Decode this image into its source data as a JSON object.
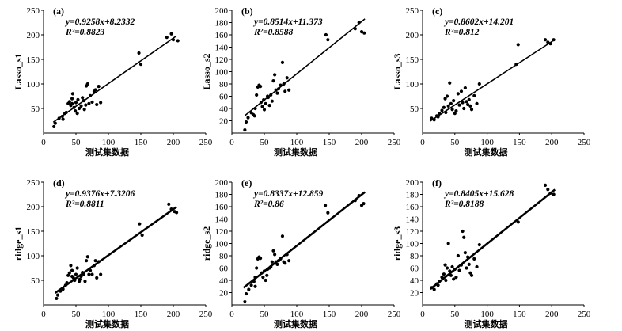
{
  "chart_data": [
    {
      "type": "scatter",
      "panel_label": "(a)",
      "ylabel": "Lasso_s1",
      "xlabel": "测试集数据",
      "xlim": [
        0,
        250
      ],
      "ylim": [
        0,
        250
      ],
      "xticks": [
        0,
        50,
        100,
        150,
        200,
        250
      ],
      "yticks": [
        50,
        100,
        150,
        200,
        250
      ],
      "equation": "y=0.9258x+8.2332",
      "r2_label": "R²=0.8823",
      "fit": {
        "slope": 0.9258,
        "intercept": 8.2332,
        "x_range": [
          15,
          205
        ]
      },
      "points": [
        [
          16,
          13
        ],
        [
          18,
          20
        ],
        [
          24,
          30
        ],
        [
          29,
          34
        ],
        [
          33,
          40
        ],
        [
          35,
          42
        ],
        [
          38,
          60
        ],
        [
          40,
          64
        ],
        [
          42,
          56
        ],
        [
          44,
          70
        ],
        [
          45,
          80
        ],
        [
          47,
          52
        ],
        [
          49,
          45
        ],
        [
          50,
          62
        ],
        [
          53,
          68
        ],
        [
          55,
          50
        ],
        [
          58,
          55
        ],
        [
          60,
          72
        ],
        [
          62,
          66
        ],
        [
          63,
          48
        ],
        [
          65,
          57
        ],
        [
          66,
          96
        ],
        [
          68,
          100
        ],
        [
          70,
          60
        ],
        [
          72,
          76
        ],
        [
          75,
          63
        ],
        [
          78,
          85
        ],
        [
          80,
          88
        ],
        [
          82,
          58
        ],
        [
          85,
          95
        ],
        [
          88,
          62
        ],
        [
          147,
          163
        ],
        [
          150,
          140
        ],
        [
          190,
          195
        ],
        [
          197,
          202
        ],
        [
          200,
          190
        ],
        [
          207,
          188
        ],
        [
          44,
          60
        ],
        [
          52,
          40
        ],
        [
          30,
          28
        ]
      ]
    },
    {
      "type": "scatter",
      "panel_label": "(b)",
      "ylabel": "Lasso_s2",
      "xlabel": "测试集数据",
      "xlim": [
        0,
        250
      ],
      "ylim": [
        0,
        200
      ],
      "xticks": [
        0,
        50,
        100,
        150,
        200,
        250
      ],
      "yticks": [
        20,
        40,
        60,
        80,
        100,
        120,
        140,
        160,
        180,
        200
      ],
      "equation": "y=0.8514x+11.373",
      "r2_label": "R²=0.8588",
      "fit": {
        "slope": 0.8514,
        "intercept": 11.373,
        "x_range": [
          20,
          205
        ]
      },
      "points": [
        [
          20,
          5
        ],
        [
          22,
          18
        ],
        [
          25,
          25
        ],
        [
          30,
          33
        ],
        [
          33,
          30
        ],
        [
          36,
          40
        ],
        [
          38,
          62
        ],
        [
          40,
          75
        ],
        [
          42,
          78
        ],
        [
          44,
          76
        ],
        [
          45,
          50
        ],
        [
          47,
          43
        ],
        [
          49,
          54
        ],
        [
          50,
          38
        ],
        [
          52,
          48
        ],
        [
          55,
          60
        ],
        [
          58,
          45
        ],
        [
          60,
          62
        ],
        [
          62,
          52
        ],
        [
          64,
          85
        ],
        [
          66,
          95
        ],
        [
          68,
          70
        ],
        [
          70,
          65
        ],
        [
          72,
          72
        ],
        [
          75,
          78
        ],
        [
          78,
          115
        ],
        [
          80,
          80
        ],
        [
          82,
          68
        ],
        [
          85,
          90
        ],
        [
          88,
          70
        ],
        [
          145,
          160
        ],
        [
          148,
          152
        ],
        [
          190,
          170
        ],
        [
          196,
          180
        ],
        [
          200,
          165
        ],
        [
          204,
          163
        ],
        [
          35,
          28
        ],
        [
          56,
          58
        ]
      ]
    },
    {
      "type": "scatter",
      "panel_label": "(c)",
      "ylabel": "Lasso_s3",
      "xlabel": "测试集数据",
      "xlim": [
        0,
        250
      ],
      "ylim": [
        0,
        250
      ],
      "xticks": [
        0,
        50,
        100,
        150,
        200,
        250
      ],
      "yticks": [
        50,
        100,
        150,
        200,
        250
      ],
      "equation": "y=0.8602x+14.201",
      "r2_label": "R²=0.812",
      "fit": {
        "slope": 0.8602,
        "intercept": 14.201,
        "x_range": [
          12,
          205
        ]
      },
      "points": [
        [
          14,
          30
        ],
        [
          18,
          27
        ],
        [
          22,
          35
        ],
        [
          26,
          40
        ],
        [
          30,
          46
        ],
        [
          33,
          52
        ],
        [
          35,
          70
        ],
        [
          38,
          75
        ],
        [
          40,
          55
        ],
        [
          42,
          102
        ],
        [
          44,
          60
        ],
        [
          46,
          48
        ],
        [
          48,
          66
        ],
        [
          50,
          40
        ],
        [
          52,
          45
        ],
        [
          55,
          80
        ],
        [
          57,
          57
        ],
        [
          60,
          85
        ],
        [
          62,
          62
        ],
        [
          64,
          50
        ],
        [
          66,
          92
        ],
        [
          68,
          64
        ],
        [
          70,
          58
        ],
        [
          72,
          68
        ],
        [
          74,
          55
        ],
        [
          76,
          48
        ],
        [
          80,
          76
        ],
        [
          84,
          60
        ],
        [
          88,
          100
        ],
        [
          145,
          140
        ],
        [
          148,
          180
        ],
        [
          190,
          190
        ],
        [
          194,
          185
        ],
        [
          198,
          182
        ],
        [
          203,
          190
        ],
        [
          24,
          33
        ],
        [
          36,
          42
        ]
      ]
    },
    {
      "type": "scatter",
      "panel_label": "(d)",
      "ylabel": "ridge_s1",
      "xlabel": "测试集数据",
      "xlim": [
        0,
        250
      ],
      "ylim": [
        0,
        250
      ],
      "xticks": [
        0,
        50,
        100,
        150,
        200,
        250
      ],
      "yticks": [
        50,
        100,
        150,
        200,
        250
      ],
      "equation": "y=0.9376x+7.3206",
      "r2_label": "R²=0.8811",
      "fit": {
        "slope": 0.9376,
        "intercept": 7.3206,
        "x_range": [
          18,
          205
        ]
      },
      "points": [
        [
          20,
          13
        ],
        [
          22,
          20
        ],
        [
          26,
          28
        ],
        [
          30,
          32
        ],
        [
          34,
          40
        ],
        [
          36,
          45
        ],
        [
          38,
          60
        ],
        [
          40,
          65
        ],
        [
          42,
          80
        ],
        [
          44,
          70
        ],
        [
          46,
          55
        ],
        [
          48,
          50
        ],
        [
          50,
          62
        ],
        [
          52,
          75
        ],
        [
          55,
          48
        ],
        [
          58,
          58
        ],
        [
          60,
          66
        ],
        [
          62,
          62
        ],
        [
          64,
          48
        ],
        [
          66,
          90
        ],
        [
          68,
          98
        ],
        [
          70,
          62
        ],
        [
          72,
          70
        ],
        [
          75,
          62
        ],
        [
          78,
          80
        ],
        [
          80,
          90
        ],
        [
          82,
          55
        ],
        [
          85,
          88
        ],
        [
          88,
          62
        ],
        [
          148,
          165
        ],
        [
          152,
          142
        ],
        [
          193,
          205
        ],
        [
          197,
          195
        ],
        [
          202,
          190
        ],
        [
          205,
          188
        ],
        [
          44,
          58
        ],
        [
          56,
          52
        ]
      ]
    },
    {
      "type": "scatter",
      "panel_label": "(e)",
      "ylabel": "ridge_s2",
      "xlabel": "测试集数据",
      "xlim": [
        0,
        250
      ],
      "ylim": [
        0,
        200
      ],
      "xticks": [
        0,
        50,
        100,
        150,
        200,
        250
      ],
      "yticks": [
        20,
        40,
        60,
        80,
        100,
        120,
        140,
        160,
        180,
        200
      ],
      "equation": "y=0.8337x+12.859",
      "r2_label": "R²=0.86",
      "fit": {
        "slope": 0.8337,
        "intercept": 12.859,
        "x_range": [
          18,
          205
        ]
      },
      "points": [
        [
          20,
          5
        ],
        [
          22,
          18
        ],
        [
          26,
          25
        ],
        [
          30,
          32
        ],
        [
          34,
          38
        ],
        [
          36,
          45
        ],
        [
          38,
          60
        ],
        [
          40,
          75
        ],
        [
          42,
          78
        ],
        [
          44,
          76
        ],
        [
          46,
          52
        ],
        [
          48,
          45
        ],
        [
          50,
          55
        ],
        [
          52,
          40
        ],
        [
          55,
          58
        ],
        [
          58,
          60
        ],
        [
          60,
          62
        ],
        [
          62,
          70
        ],
        [
          64,
          88
        ],
        [
          66,
          82
        ],
        [
          68,
          70
        ],
        [
          70,
          66
        ],
        [
          72,
          72
        ],
        [
          75,
          75
        ],
        [
          78,
          112
        ],
        [
          80,
          70
        ],
        [
          82,
          68
        ],
        [
          85,
          82
        ],
        [
          88,
          72
        ],
        [
          144,
          162
        ],
        [
          148,
          150
        ],
        [
          190,
          170
        ],
        [
          196,
          178
        ],
        [
          200,
          162
        ],
        [
          203,
          165
        ],
        [
          36,
          30
        ],
        [
          54,
          48
        ]
      ]
    },
    {
      "type": "scatter",
      "panel_label": "(f)",
      "ylabel": "ridge_s3",
      "xlabel": "测试集数据",
      "xlim": [
        0,
        250
      ],
      "ylim": [
        0,
        200
      ],
      "xticks": [
        0,
        50,
        100,
        150,
        200,
        250
      ],
      "yticks": [
        20,
        40,
        60,
        80,
        100,
        120,
        140,
        160,
        180,
        200
      ],
      "equation": "y=0.8405x+15.628",
      "r2_label": "R²=0.8188",
      "fit": {
        "slope": 0.8405,
        "intercept": 15.628,
        "x_range": [
          12,
          205
        ]
      },
      "points": [
        [
          14,
          28
        ],
        [
          18,
          25
        ],
        [
          22,
          34
        ],
        [
          26,
          38
        ],
        [
          30,
          45
        ],
        [
          33,
          50
        ],
        [
          35,
          65
        ],
        [
          38,
          60
        ],
        [
          40,
          100
        ],
        [
          42,
          55
        ],
        [
          44,
          48
        ],
        [
          46,
          62
        ],
        [
          48,
          42
        ],
        [
          50,
          58
        ],
        [
          52,
          45
        ],
        [
          55,
          80
        ],
        [
          57,
          56
        ],
        [
          60,
          65
        ],
        [
          62,
          120
        ],
        [
          64,
          110
        ],
        [
          66,
          85
        ],
        [
          68,
          60
        ],
        [
          70,
          78
        ],
        [
          72,
          66
        ],
        [
          74,
          52
        ],
        [
          76,
          48
        ],
        [
          80,
          75
        ],
        [
          84,
          62
        ],
        [
          88,
          98
        ],
        [
          148,
          135
        ],
        [
          190,
          195
        ],
        [
          194,
          188
        ],
        [
          198,
          182
        ],
        [
          203,
          180
        ],
        [
          24,
          32
        ],
        [
          36,
          40
        ]
      ]
    }
  ]
}
